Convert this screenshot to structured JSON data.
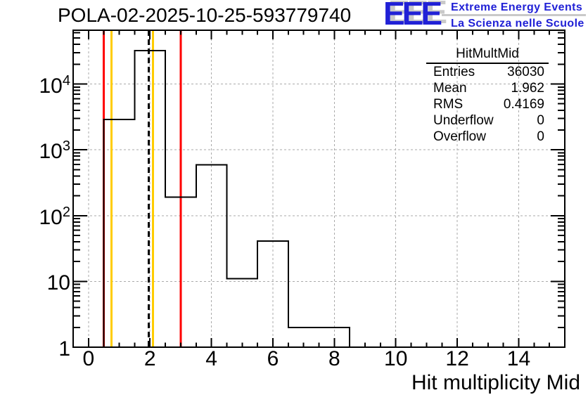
{
  "header": {
    "title": "POLA-02-2025-10-25-593779740"
  },
  "logo": {
    "text": "EEE",
    "line1": "Extreme Energy Events",
    "line2": "La Scienza nelle Scuole",
    "color": "#2121d6",
    "shadow": "#c9c9c9"
  },
  "stats": {
    "title": "HitMultMid",
    "rows": [
      {
        "label": "Entries",
        "value": "36030"
      },
      {
        "label": "Mean",
        "value": "1.962"
      },
      {
        "label": "RMS",
        "value": "0.4169"
      },
      {
        "label": "Underflow",
        "value": "0"
      },
      {
        "label": "Overflow",
        "value": "0"
      }
    ]
  },
  "chart_data": {
    "type": "bar",
    "title": "POLA-02-2025-10-25-593779740",
    "xlabel": "Hit multiplicity Mid",
    "ylabel": "",
    "ylog": true,
    "grid": true,
    "xlim": [
      -0.5,
      15.5
    ],
    "ylim": [
      1,
      65700
    ],
    "bin_width": 1,
    "bin_centers": [
      1,
      2,
      3,
      4,
      5,
      6,
      7,
      8
    ],
    "values": [
      2900,
      32300,
      190,
      590,
      11,
      41,
      2,
      2
    ],
    "x_ticks": [
      0,
      2,
      4,
      6,
      8,
      10,
      12,
      14
    ],
    "x_tick_labels": [
      "0",
      "2",
      "4",
      "6",
      "8",
      "10",
      "12",
      "14"
    ],
    "x_minor_step": 0.5,
    "y_ticks": [
      {
        "v": 1,
        "base": "1",
        "exp": ""
      },
      {
        "v": 10,
        "base": "10",
        "exp": ""
      },
      {
        "v": 100,
        "base": "10",
        "exp": "2"
      },
      {
        "v": 1000,
        "base": "10",
        "exp": "3"
      },
      {
        "v": 10000,
        "base": "10",
        "exp": "4"
      }
    ],
    "grid_y": [
      10,
      100,
      1000,
      10000
    ],
    "line_color": "#000000",
    "grid_color": "#aaaaaa",
    "marker_lines": [
      {
        "name": "red-low",
        "x": 0.5,
        "color": "#ff0000",
        "style": "solid"
      },
      {
        "name": "yellow-low",
        "x": 0.75,
        "color": "#ffcc00",
        "style": "solid"
      },
      {
        "name": "mean-dashed",
        "x": 1.962,
        "color": "#000000",
        "style": "dashed"
      },
      {
        "name": "yellow-high",
        "x": 2.1,
        "color": "#ffcc00",
        "style": "solid"
      },
      {
        "name": "red-high",
        "x": 3.0,
        "color": "#ff0000",
        "style": "solid"
      }
    ]
  }
}
